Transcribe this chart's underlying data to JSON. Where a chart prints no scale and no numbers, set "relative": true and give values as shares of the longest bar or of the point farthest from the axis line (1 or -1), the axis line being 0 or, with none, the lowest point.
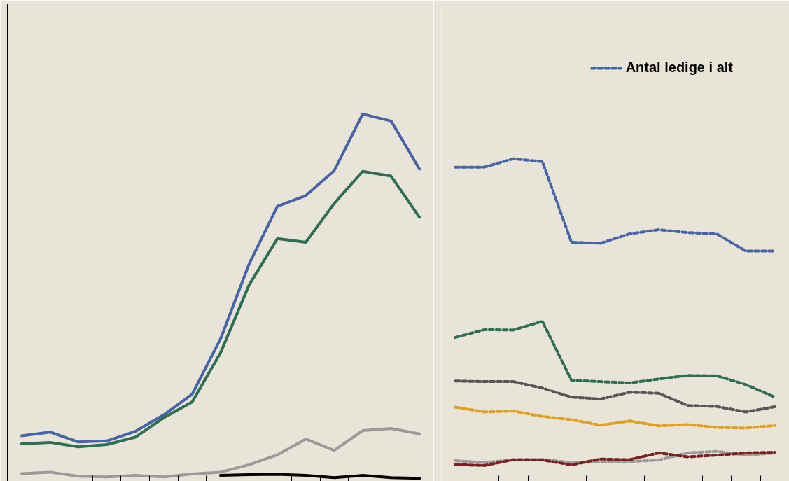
{
  "chart_data": [
    {
      "type": "line",
      "relative": true,
      "categories": [
        null,
        null,
        null,
        null,
        null,
        null,
        null,
        null,
        null,
        null,
        null,
        null,
        null,
        null,
        null
      ],
      "grid": false,
      "series": [
        {
          "color": "#4565a8",
          "line_style": "solid",
          "values": [
            0.124,
            0.134,
            0.107,
            0.11,
            0.136,
            0.181,
            0.237,
            0.388,
            0.591,
            0.749,
            0.778,
            0.846,
            1.0,
            0.981,
            0.85
          ]
        },
        {
          "color": "#2e6e52",
          "line_style": "solid",
          "values": [
            0.102,
            0.106,
            0.094,
            0.1,
            0.12,
            0.173,
            0.216,
            0.35,
            0.534,
            0.661,
            0.651,
            0.757,
            0.844,
            0.831,
            0.719
          ]
        },
        {
          "color": "#9a9a9a",
          "line_style": "solid",
          "values": [
            0.021,
            0.025,
            0.014,
            0.012,
            0.016,
            0.012,
            0.02,
            0.025,
            0.045,
            0.072,
            0.115,
            0.084,
            0.138,
            0.144,
            0.129
          ]
        },
        {
          "color": "#000000",
          "line_style": "solid",
          "values": [
            null,
            null,
            null,
            null,
            null,
            null,
            null,
            0.016,
            0.018,
            0.019,
            0.016,
            0.01,
            0.016,
            0.01,
            0.008
          ]
        }
      ]
    },
    {
      "type": "line",
      "relative": true,
      "categories": [
        null,
        null,
        null,
        null,
        null,
        null,
        null,
        null,
        null,
        null,
        null,
        null
      ],
      "grid": false,
      "legend": "top right",
      "series": [
        {
          "color": "#2e6e52",
          "line_style": "dashed",
          "values": [
            0.446,
            0.47,
            0.469,
            0.496,
            0.313,
            0.309,
            0.305,
            0.317,
            0.328,
            0.327,
            0.3,
            0.261
          ]
        },
        {
          "color": "#555555",
          "line_style": "dashed",
          "values": [
            0.311,
            0.309,
            0.309,
            0.289,
            0.261,
            0.255,
            0.276,
            0.273,
            0.235,
            0.232,
            0.215,
            0.231
          ]
        },
        {
          "color": "#e0a020",
          "line_style": "dashed",
          "values": [
            0.23,
            0.215,
            0.218,
            0.201,
            0.191,
            0.174,
            0.187,
            0.172,
            0.176,
            0.167,
            0.165,
            0.173
          ]
        },
        {
          "color": "#9a9a9a",
          "line_style": "dashed",
          "values": [
            0.064,
            0.058,
            0.067,
            0.068,
            0.058,
            0.06,
            0.061,
            0.066,
            0.088,
            0.093,
            0.081,
            0.088
          ]
        },
        {
          "color": "#7a2020",
          "line_style": "dashed",
          "values": [
            0.052,
            0.049,
            0.067,
            0.066,
            0.051,
            0.069,
            0.067,
            0.088,
            0.076,
            0.081,
            0.088,
            0.09
          ]
        },
        {
          "name": "Antal ledige i alt",
          "color": "#4565a8",
          "line_style": "dashed",
          "values": [
            0.974,
            0.974,
            1.0,
            0.991,
            0.741,
            0.738,
            0.767,
            0.78,
            0.771,
            0.767,
            0.714,
            0.714
          ]
        }
      ]
    }
  ]
}
